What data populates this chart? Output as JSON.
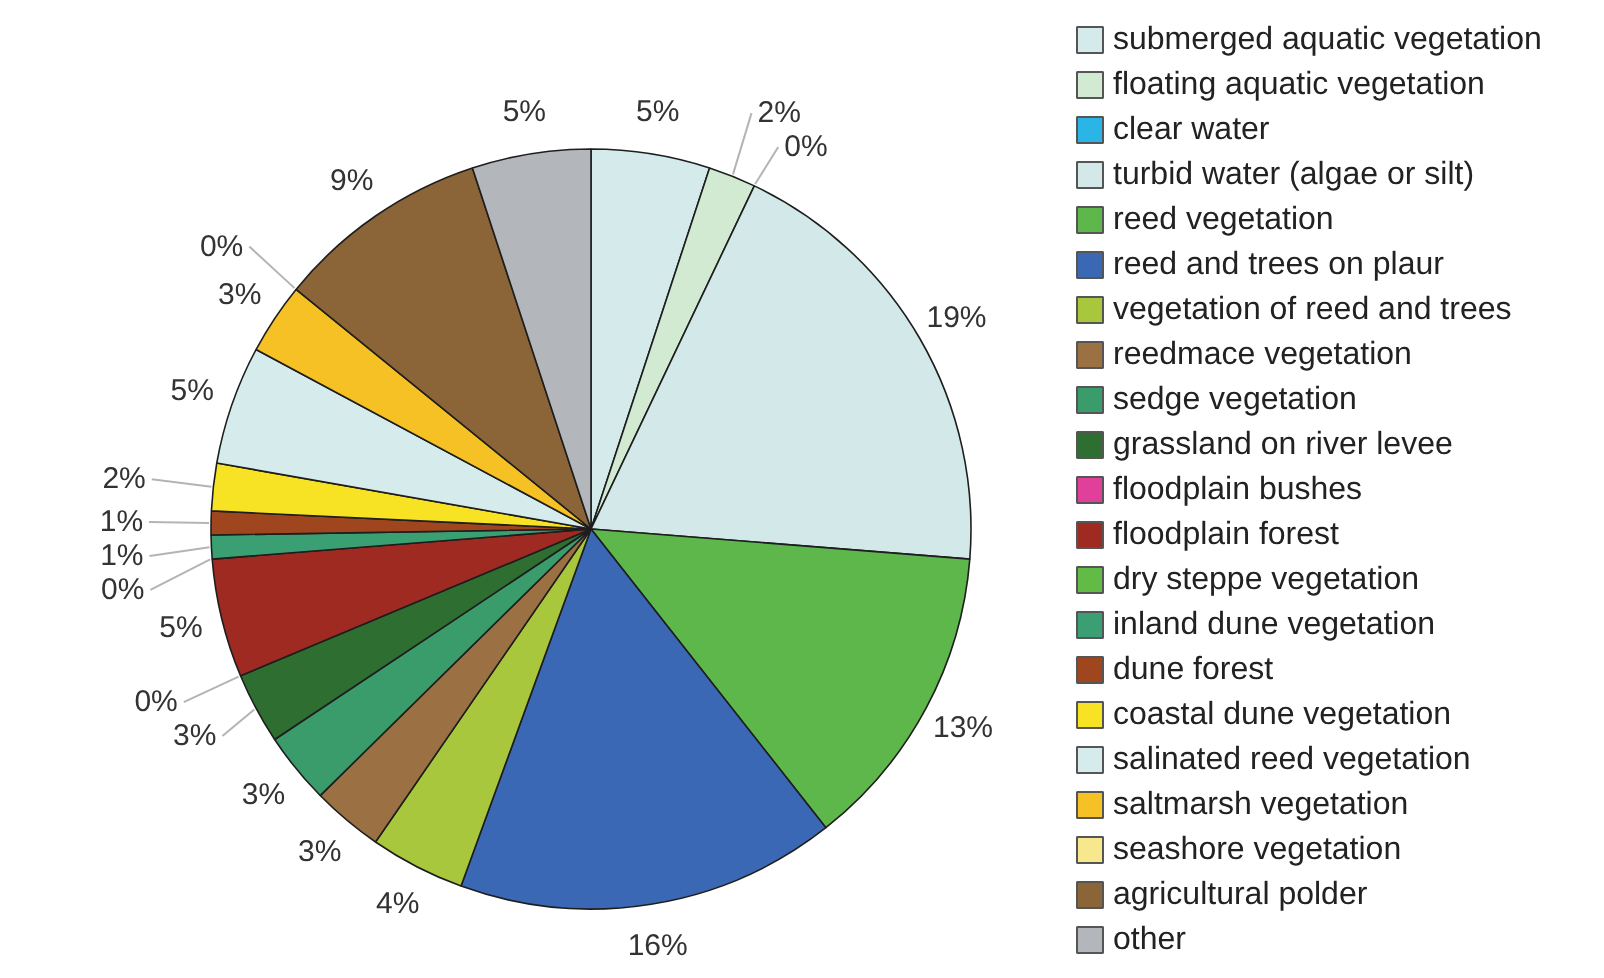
{
  "chart_data": {
    "type": "pie",
    "categories": [
      "submerged aquatic vegetation",
      "floating aquatic vegetation",
      "clear water",
      "turbid water (algae or silt)",
      "reed vegetation",
      "reed and trees on plaur",
      "vegetation of reed and trees",
      "reedmace vegetation",
      "sedge vegetation",
      "grassland on river levee",
      "floodplain bushes",
      "floodplain forest",
      "dry steppe vegetation",
      "inland dune vegetation",
      "dune forest",
      "coastal dune vegetation",
      "salinated reed vegetation",
      "saltmarsh vegetation",
      "seashore vegetation",
      "agricultural polder",
      "other"
    ],
    "values": [
      5,
      2,
      0,
      19,
      13,
      16,
      4,
      3,
      3,
      3,
      0,
      5,
      0,
      1,
      1,
      2,
      5,
      3,
      0,
      9,
      5
    ],
    "value_labels": [
      "5%",
      "2%",
      "0%",
      "19%",
      "13%",
      "16%",
      "4%",
      "3%",
      "3%",
      "3%",
      "0%",
      "5%",
      "0%",
      "1%",
      "1%",
      "2%",
      "5%",
      "3%",
      "0%",
      "9%",
      "5%"
    ],
    "colors": [
      "#d5ebeb",
      "#d3ead2",
      "#2bb5e6",
      "#d3e9e9",
      "#5db74b",
      "#3a68b5",
      "#a9c73c",
      "#9b7143",
      "#3a9b6b",
      "#2f6e31",
      "#e0409a",
      "#9e2a22",
      "#62bb45",
      "#3aa073",
      "#a0461f",
      "#f7e223",
      "#d6ecec",
      "#f6c125",
      "#f7e88e",
      "#8b6437",
      "#b3b7bb"
    ],
    "legend": "right"
  }
}
